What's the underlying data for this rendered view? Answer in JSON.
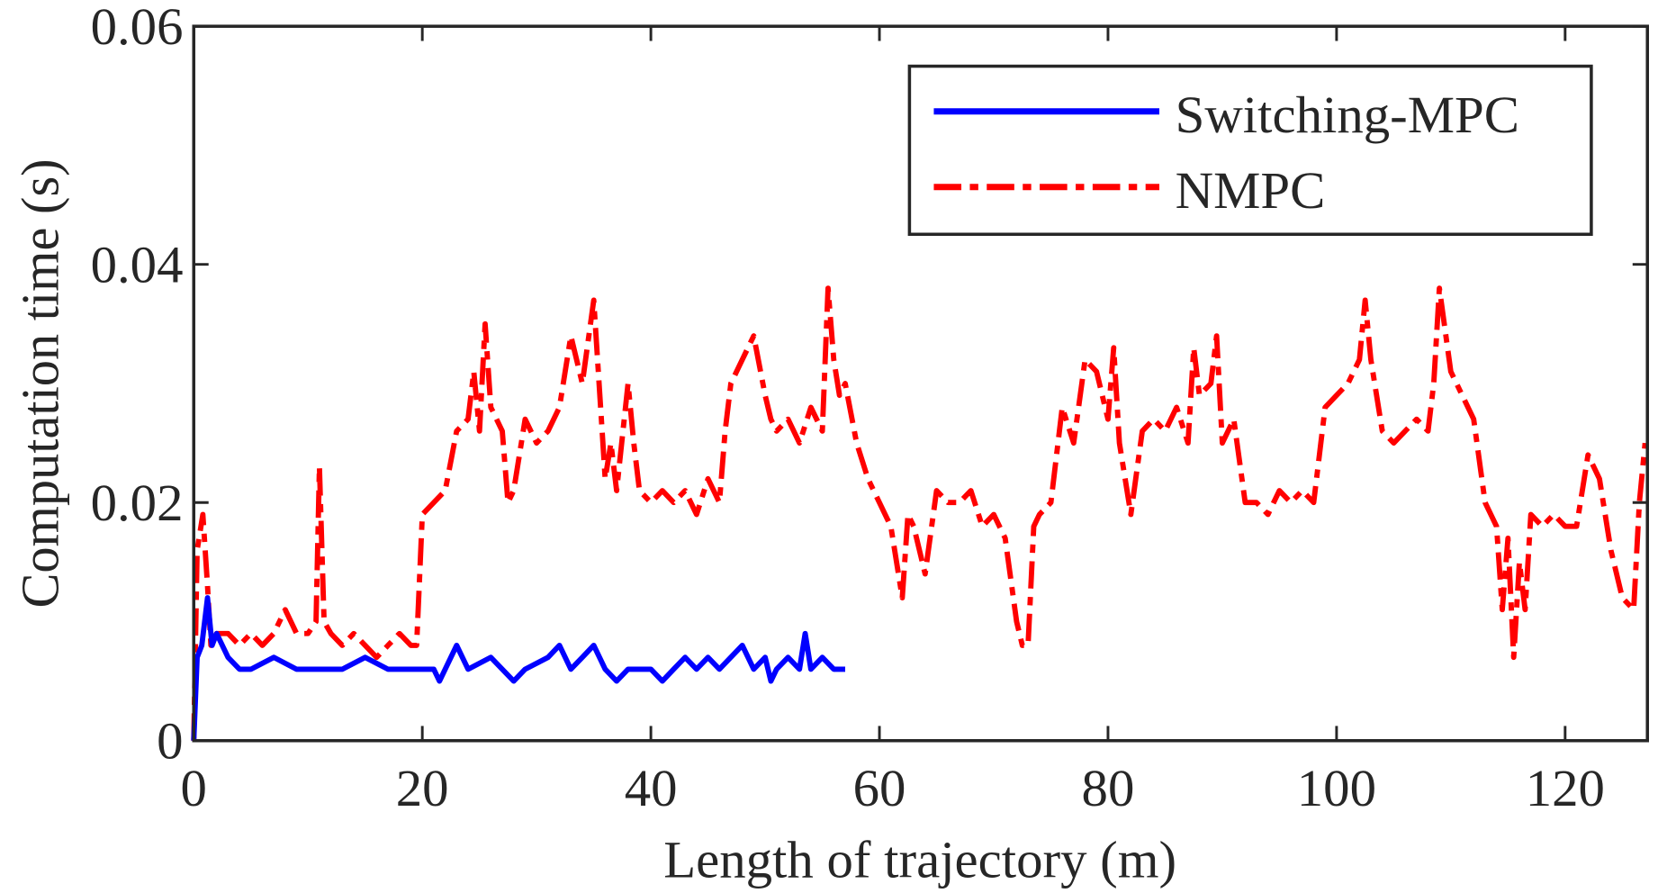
{
  "chart_data": {
    "type": "line",
    "title": "",
    "xlabel": "Length of trajectory (m)",
    "ylabel": "Computation time (s)",
    "xlim": [
      0,
      127.2
    ],
    "ylim": [
      0,
      0.06
    ],
    "xticks": [
      0,
      20,
      40,
      60,
      80,
      100,
      120
    ],
    "xtick_labels": [
      "0",
      "20",
      "40",
      "60",
      "80",
      "100",
      "120"
    ],
    "yticks": [
      0,
      0.02,
      0.04,
      0.06
    ],
    "ytick_labels": [
      "0",
      "0.02",
      "0.04",
      "0.06"
    ],
    "grid": false,
    "legend_position": "top-right",
    "series": [
      {
        "name": "Switching-MPC",
        "color": "#0000ff",
        "style": "solid",
        "x": [
          0,
          0.3,
          0.7,
          1.2,
          1.6,
          2,
          3,
          4,
          5,
          7,
          9,
          11,
          13,
          15,
          17,
          19,
          21,
          21.5,
          22,
          23,
          24,
          26,
          28,
          29,
          31,
          32,
          33,
          34,
          35,
          36,
          37,
          38,
          40,
          41,
          42,
          43,
          44,
          45,
          46,
          48,
          49,
          50,
          50.5,
          51,
          52,
          53,
          53.5,
          54,
          55,
          56,
          57
        ],
        "y": [
          0,
          0.007,
          0.008,
          0.012,
          0.008,
          0.009,
          0.007,
          0.006,
          0.006,
          0.007,
          0.006,
          0.006,
          0.006,
          0.007,
          0.006,
          0.006,
          0.006,
          0.005,
          0.006,
          0.008,
          0.006,
          0.007,
          0.005,
          0.006,
          0.007,
          0.008,
          0.006,
          0.007,
          0.008,
          0.006,
          0.005,
          0.006,
          0.006,
          0.005,
          0.006,
          0.007,
          0.006,
          0.007,
          0.006,
          0.008,
          0.006,
          0.007,
          0.005,
          0.006,
          0.007,
          0.006,
          0.009,
          0.006,
          0.007,
          0.006,
          0.006
        ]
      },
      {
        "name": "NMPC",
        "color": "#ff0000",
        "style": "dash-dot",
        "x": [
          0,
          0.3,
          0.8,
          1.2,
          1.5,
          2,
          3,
          4,
          5,
          6,
          7,
          8,
          9,
          10,
          10.7,
          11,
          11.4,
          12,
          13,
          14,
          15,
          16,
          17,
          18,
          19,
          19.5,
          20,
          21,
          22,
          23,
          24,
          24.5,
          25,
          25.5,
          26,
          27,
          27.5,
          28,
          29,
          30,
          31,
          32,
          33,
          34,
          35,
          36,
          36.5,
          37,
          38,
          38.5,
          39,
          40,
          41,
          42,
          43,
          44,
          45,
          46,
          46.5,
          47,
          48,
          49,
          50,
          50.5,
          51,
          52,
          53,
          54,
          55,
          55.5,
          56,
          56.5,
          57,
          58,
          59,
          60,
          61,
          62,
          62.5,
          63,
          64,
          65,
          66,
          67,
          68,
          69,
          70,
          71,
          72,
          72.5,
          73,
          73.5,
          74,
          75,
          76,
          77,
          78,
          79,
          80,
          80.5,
          81,
          82,
          83,
          84,
          85,
          86,
          87,
          87.5,
          88,
          89,
          89.5,
          90,
          91,
          92,
          93,
          94,
          95,
          96,
          97,
          98,
          99,
          100,
          101,
          102,
          102.5,
          103,
          104,
          105,
          106,
          107,
          108,
          108.5,
          109,
          110,
          111,
          112,
          113,
          114,
          114.5,
          115,
          115.5,
          116,
          116.5,
          117,
          118,
          119,
          120,
          121,
          122,
          123,
          124,
          125,
          126,
          126.5,
          127
        ],
        "y": [
          0,
          0.016,
          0.019,
          0.013,
          0.008,
          0.009,
          0.009,
          0.008,
          0.009,
          0.008,
          0.009,
          0.011,
          0.009,
          0.009,
          0.01,
          0.023,
          0.01,
          0.009,
          0.008,
          0.009,
          0.008,
          0.007,
          0.008,
          0.009,
          0.008,
          0.008,
          0.019,
          0.02,
          0.021,
          0.026,
          0.027,
          0.031,
          0.026,
          0.035,
          0.028,
          0.026,
          0.02,
          0.021,
          0.027,
          0.025,
          0.026,
          0.028,
          0.034,
          0.03,
          0.037,
          0.022,
          0.025,
          0.021,
          0.03,
          0.025,
          0.021,
          0.02,
          0.021,
          0.02,
          0.021,
          0.019,
          0.022,
          0.02,
          0.026,
          0.03,
          0.032,
          0.034,
          0.029,
          0.027,
          0.026,
          0.027,
          0.025,
          0.028,
          0.026,
          0.038,
          0.032,
          0.029,
          0.03,
          0.025,
          0.022,
          0.02,
          0.018,
          0.012,
          0.019,
          0.018,
          0.014,
          0.021,
          0.02,
          0.02,
          0.021,
          0.018,
          0.019,
          0.017,
          0.01,
          0.008,
          0.008,
          0.018,
          0.019,
          0.02,
          0.028,
          0.025,
          0.032,
          0.031,
          0.027,
          0.033,
          0.025,
          0.019,
          0.026,
          0.027,
          0.026,
          0.028,
          0.025,
          0.033,
          0.029,
          0.03,
          0.034,
          0.025,
          0.027,
          0.02,
          0.02,
          0.019,
          0.021,
          0.02,
          0.021,
          0.02,
          0.028,
          0.029,
          0.03,
          0.032,
          0.037,
          0.032,
          0.026,
          0.025,
          0.026,
          0.027,
          0.026,
          0.03,
          0.038,
          0.031,
          0.029,
          0.027,
          0.02,
          0.018,
          0.011,
          0.017,
          0.007,
          0.015,
          0.011,
          0.019,
          0.018,
          0.019,
          0.018,
          0.018,
          0.024,
          0.022,
          0.016,
          0.012,
          0.011,
          0.02,
          0.025
        ]
      }
    ]
  }
}
